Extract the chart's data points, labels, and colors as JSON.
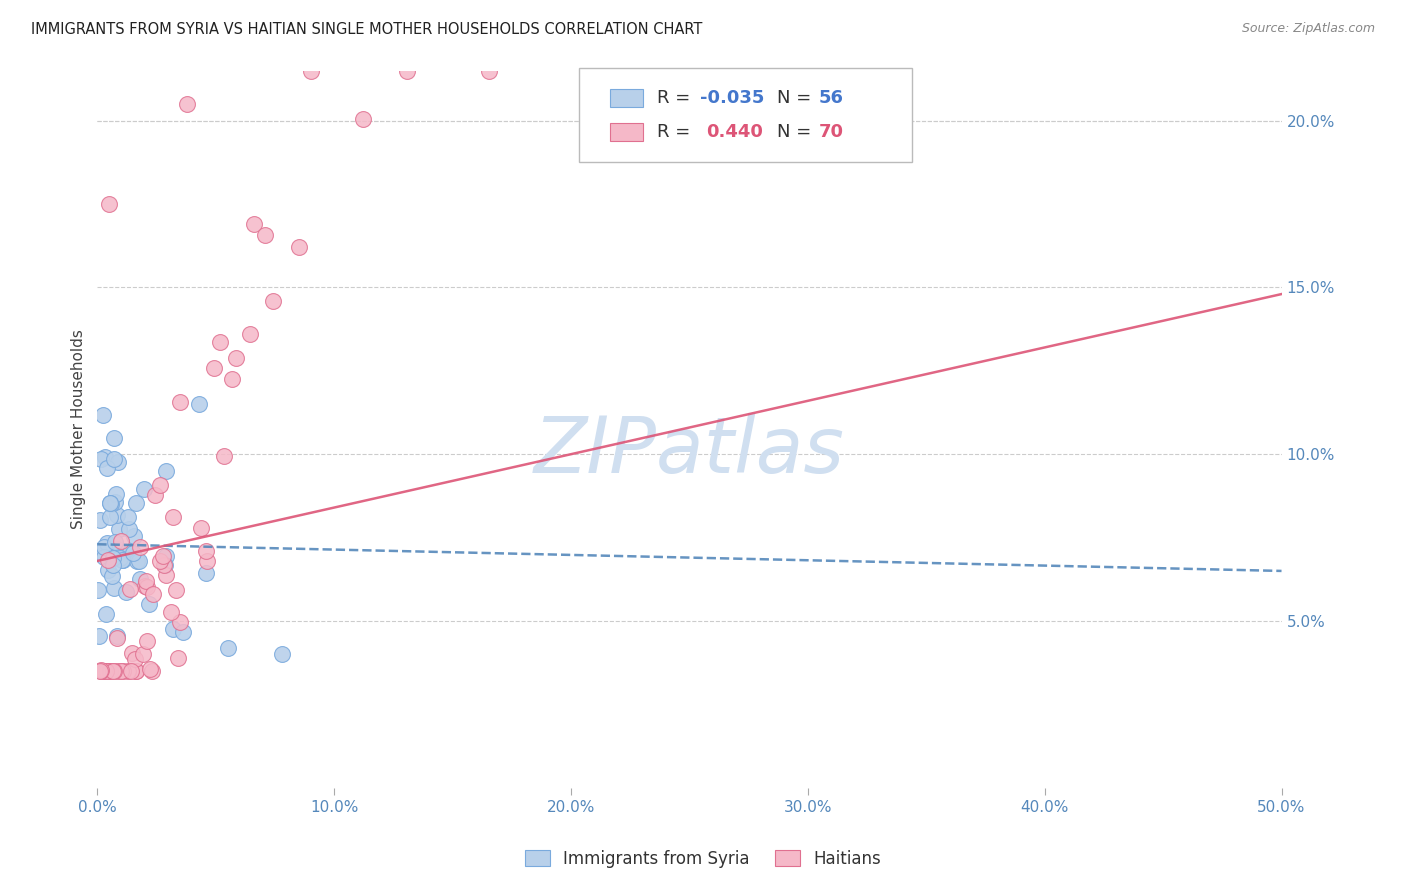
{
  "title": "IMMIGRANTS FROM SYRIA VS HAITIAN SINGLE MOTHER HOUSEHOLDS CORRELATION CHART",
  "source": "Source: ZipAtlas.com",
  "ylabel": "Single Mother Households",
  "right_ytick_values": [
    0.05,
    0.1,
    0.15,
    0.2
  ],
  "right_ytick_labels": [
    "5.0%",
    "10.0%",
    "15.0%",
    "20.0%"
  ],
  "xmin": 0.0,
  "xmax": 0.5,
  "ymin": 0.0,
  "ymax": 0.215,
  "xtick_values": [
    0.0,
    0.1,
    0.2,
    0.3,
    0.4,
    0.5
  ],
  "xtick_labels": [
    "0.0%",
    "10.0%",
    "20.0%",
    "30.0%",
    "40.0%",
    "50.0%"
  ],
  "legend_r_blue": "-0.035",
  "legend_n_blue": "56",
  "legend_r_pink": "0.440",
  "legend_n_pink": "70",
  "legend_label_blue": "Immigrants from Syria",
  "legend_label_pink": "Haitians",
  "blue_fill": "#b8d0ea",
  "blue_edge": "#7aaadd",
  "pink_fill": "#f5b8c8",
  "pink_edge": "#e07090",
  "blue_line_color": "#5588bb",
  "pink_line_color": "#dd5577",
  "watermark": "ZIPatlas",
  "watermark_color": "#d0dff0",
  "grid_color": "#cccccc",
  "tick_color": "#5588bb",
  "title_color": "#222222",
  "source_color": "#888888",
  "ylabel_color": "#444444",
  "blue_trend_start_y": 0.073,
  "blue_trend_end_y": 0.065,
  "pink_trend_start_y": 0.068,
  "pink_trend_end_y": 0.148
}
